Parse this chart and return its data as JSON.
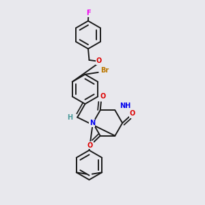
{
  "bg_color": "#e8e8ed",
  "bond_color": "#1a1a1a",
  "bond_width": 1.4,
  "atom_colors": {
    "F": "#ee00ee",
    "O": "#dd0000",
    "N": "#0000ee",
    "Br": "#bb7700",
    "H": "#4a9a9a",
    "C": "#1a1a1a"
  },
  "font_size": 7.0
}
